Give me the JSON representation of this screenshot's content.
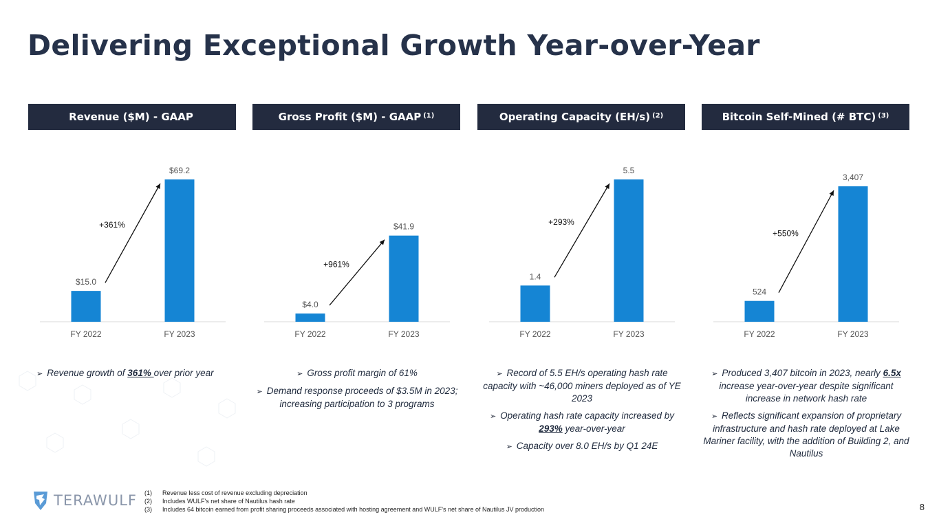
{
  "title": "Delivering Exceptional Growth Year-over-Year",
  "colors": {
    "bar": "#1585d4",
    "header_bg": "#232b3f",
    "title": "#26324a",
    "axis": "#d9d9d9"
  },
  "panels": [
    {
      "header": "Revenue ($M) - GAAP",
      "header_sup": "",
      "chart_data": {
        "type": "bar",
        "categories": [
          "FY 2022",
          "FY 2023"
        ],
        "values": [
          15.0,
          69.2
        ],
        "value_labels": [
          "$15.0",
          "$69.2"
        ],
        "growth_label": "+361%",
        "ylim": [
          0,
          69.2
        ]
      },
      "bullets": [
        {
          "parts": [
            {
              "t": "Revenue growth of "
            },
            {
              "t": "361% ",
              "s": "u"
            },
            {
              "t": "over prior year"
            }
          ]
        }
      ]
    },
    {
      "header": "Gross Profit ($M) - GAAP",
      "header_sup": "(1)",
      "chart_data": {
        "type": "bar",
        "categories": [
          "FY 2022",
          "FY 2023"
        ],
        "values": [
          4.0,
          41.9
        ],
        "value_labels": [
          "$4.0",
          "$41.9"
        ],
        "growth_label": "+961%",
        "ylim": [
          0,
          69.2
        ]
      },
      "bullets": [
        {
          "parts": [
            {
              "t": "Gross profit margin of 61%"
            }
          ]
        },
        {
          "parts": [
            {
              "t": "Demand response proceeds of $3.5M in 2023; increasing participation to 3 programs"
            }
          ]
        }
      ]
    },
    {
      "header": "Operating Capacity (EH/s)",
      "header_sup": "(2)",
      "chart_data": {
        "type": "bar",
        "categories": [
          "FY 2022",
          "FY 2023"
        ],
        "values": [
          1.4,
          5.5
        ],
        "value_labels": [
          "1.4",
          "5.5"
        ],
        "growth_label": "+293%",
        "ylim": [
          0,
          5.5
        ]
      },
      "bullets": [
        {
          "parts": [
            {
              "t": "Record of "
            },
            {
              "t": "5.5 EH/s",
              "s": "b"
            },
            {
              "t": " operating hash rate capacity with ~46,000 miners deployed as of YE 2023"
            }
          ]
        },
        {
          "parts": [
            {
              "t": "Operating hash rate capacity increased by "
            },
            {
              "t": "293%",
              "s": "u"
            },
            {
              "t": " year-over-year"
            }
          ]
        },
        {
          "parts": [
            {
              "t": "Capacity over "
            },
            {
              "t": "8.0 EH/s",
              "s": "b"
            },
            {
              "t": " by Q1 24E"
            }
          ]
        }
      ]
    },
    {
      "header": "Bitcoin Self-Mined (# BTC)",
      "header_sup": "(3)",
      "chart_data": {
        "type": "bar",
        "categories": [
          "FY 2022",
          "FY 2023"
        ],
        "values": [
          524,
          3407
        ],
        "value_labels": [
          "524",
          "3,407"
        ],
        "growth_label": "+550%",
        "ylim": [
          0,
          3580
        ]
      },
      "bullets": [
        {
          "parts": [
            {
              "t": "Produced "
            },
            {
              "t": "3,407",
              "s": "b"
            },
            {
              "t": " bitcoin in 2023, nearly "
            },
            {
              "t": "6.5x",
              "s": "u"
            },
            {
              "t": " increase year-over-year despite significant increase in network hash rate"
            }
          ]
        },
        {
          "parts": [
            {
              "t": "Reflects significant expansion of proprietary infrastructure and hash rate deployed at Lake Mariner facility, with the addition of Building 2, and Nautilus"
            }
          ]
        }
      ]
    }
  ],
  "footnotes": [
    {
      "num": "(1)",
      "text": "Revenue less cost of revenue excluding depreciation"
    },
    {
      "num": "(2)",
      "text": "Includes WULF's net share of Nautilus hash rate"
    },
    {
      "num": "(3)",
      "text": "Includes 64 bitcoin earned from profit sharing proceeds associated with hosting agreement and WULF's net share of Nautilus JV production"
    }
  ],
  "logo_text": "TERAWULF",
  "page_number": "8",
  "bullet_marker": "➢"
}
